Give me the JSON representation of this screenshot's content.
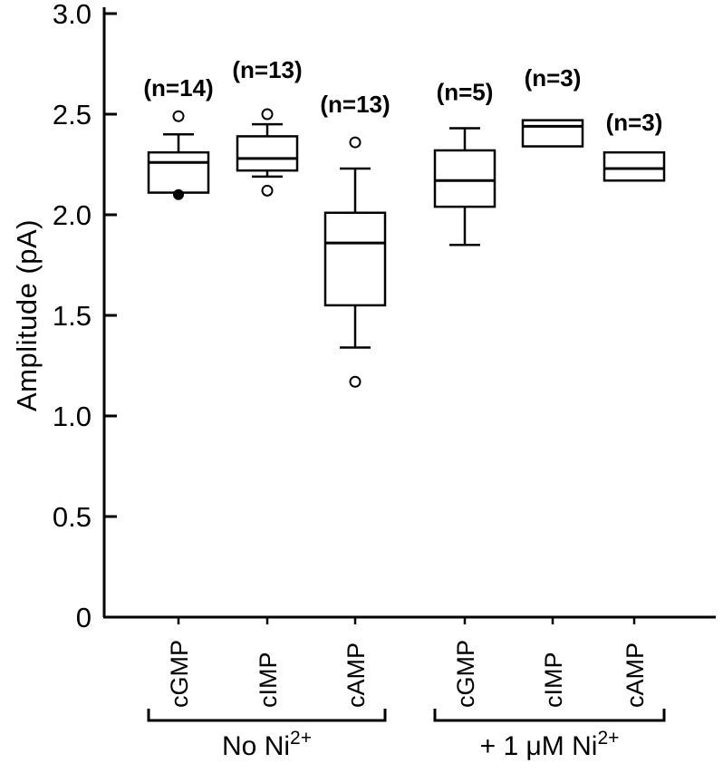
{
  "chart_data": {
    "type": "boxplot",
    "title": "",
    "ylabel": "Amplitude (pA)",
    "ylim": [
      0,
      3.0
    ],
    "yticks": [
      0,
      0.5,
      1.0,
      1.5,
      2.0,
      2.5,
      3.0
    ],
    "ytick_labels": [
      "0",
      "0.5",
      "1.0",
      "1.5",
      "2.0",
      "2.5",
      "3.0"
    ],
    "grid": false,
    "boxes": [
      {
        "category": "cGMP",
        "group": 0,
        "n": 14,
        "n_label": "(n=14)",
        "n_label_value": 2.59,
        "whisker_low": 2.11,
        "q1": 2.11,
        "median": 2.26,
        "q3": 2.31,
        "whisker_high": 2.4,
        "outliers_open": [
          2.49
        ],
        "outliers_filled": [
          2.1
        ]
      },
      {
        "category": "cIMP",
        "group": 0,
        "n": 13,
        "n_label": "(n=13)",
        "n_label_value": 2.68,
        "whisker_low": 2.19,
        "q1": 2.22,
        "median": 2.28,
        "q3": 2.39,
        "whisker_high": 2.45,
        "outliers_open": [
          2.5,
          2.12
        ],
        "outliers_filled": []
      },
      {
        "category": "cAMP",
        "group": 0,
        "n": 13,
        "n_label": "(n=13)",
        "n_label_value": 2.51,
        "whisker_low": 1.34,
        "q1": 1.55,
        "median": 1.86,
        "q3": 2.01,
        "whisker_high": 2.23,
        "outliers_open": [
          2.36,
          1.17
        ],
        "outliers_filled": []
      },
      {
        "category": "cGMP",
        "group": 1,
        "n": 5,
        "n_label": "(n=5)",
        "n_label_value": 2.57,
        "whisker_low": 1.85,
        "q1": 2.04,
        "median": 2.17,
        "q3": 2.32,
        "whisker_high": 2.43,
        "outliers_open": [],
        "outliers_filled": []
      },
      {
        "category": "cIMP",
        "group": 1,
        "n": 3,
        "n_label": "(n=3)",
        "n_label_value": 2.64,
        "whisker_low": 2.34,
        "q1": 2.34,
        "median": 2.44,
        "q3": 2.47,
        "whisker_high": 2.47,
        "outliers_open": [],
        "outliers_filled": []
      },
      {
        "category": "cAMP",
        "group": 1,
        "n": 3,
        "n_label": "(n=3)",
        "n_label_value": 2.42,
        "whisker_low": 2.17,
        "q1": 2.17,
        "median": 2.23,
        "q3": 2.31,
        "whisker_high": 2.31,
        "outliers_open": [],
        "outliers_filled": []
      }
    ],
    "groups": [
      {
        "label": "No Ni",
        "sup": "2+",
        "box_indices": [
          0,
          1,
          2
        ]
      },
      {
        "label": "+ 1 μM Ni",
        "sup": "2+",
        "box_indices": [
          3,
          4,
          5
        ]
      }
    ],
    "colors": {
      "stroke": "#000000",
      "box_fill": "#ffffff",
      "background": "#ffffff"
    }
  }
}
